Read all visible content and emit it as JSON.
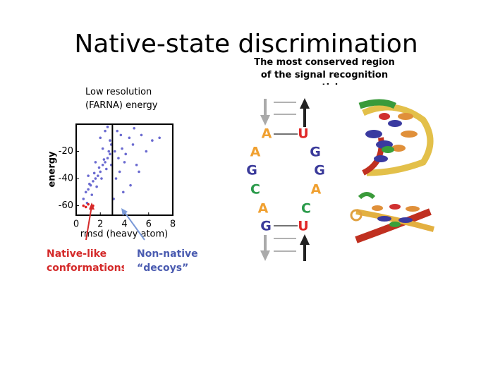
{
  "title": "Native-state discrimination",
  "subtitle": "The most conserved region of the signal recognition particle",
  "chart_data": {
    "type": "scatter",
    "title": "Low resolution (FARNA) energy",
    "xlabel": "rmsd (heavy atom)",
    "ylabel": "energy",
    "xlim": [
      0,
      8
    ],
    "ylim": [
      -67,
      0
    ],
    "xticks": [
      0,
      2,
      4,
      6,
      8
    ],
    "yticks": [
      -20,
      -40,
      -60
    ],
    "threshold_x": 3,
    "series": [
      {
        "color": "#6a6ad0",
        "x": [
          0.6,
          0.8,
          1.0,
          1.2,
          1.4,
          1.6,
          1.8,
          2.0,
          2.2,
          2.4,
          2.6,
          2.8,
          0.9,
          1.3,
          1.7,
          2.1,
          2.5,
          2.9,
          1.1,
          1.5,
          1.9,
          2.3,
          2.7,
          1.0,
          1.6,
          2.2,
          2.8,
          2.0,
          2.4,
          2.6,
          2.9,
          3.2,
          3.5,
          3.8,
          4.1,
          4.4,
          4.7,
          5.0,
          5.4,
          5.8,
          6.3,
          6.9,
          3.3,
          3.6,
          4.0,
          4.5,
          5.2,
          3.4,
          3.9,
          4.8,
          3.1,
          3.7
        ],
        "values": [
          -55,
          -50,
          -48,
          -45,
          -42,
          -40,
          -38,
          -35,
          -30,
          -28,
          -25,
          -22,
          -58,
          -52,
          -46,
          -40,
          -33,
          -30,
          -44,
          -36,
          -32,
          -26,
          -20,
          -38,
          -28,
          -18,
          -12,
          -10,
          -5,
          -2,
          -15,
          -20,
          -25,
          -18,
          -22,
          -10,
          -15,
          -30,
          -8,
          -20,
          -12,
          -10,
          -40,
          -35,
          -28,
          -45,
          -35,
          -5,
          -50,
          -3,
          -55,
          -8
        ]
      },
      {
        "color": "#e02020",
        "x": [
          0.6,
          0.8,
          1.0,
          1.2,
          1.4
        ],
        "values": [
          -60,
          -61,
          -59,
          -62,
          -60
        ]
      }
    ],
    "annotations": [
      {
        "text": "Native-like conformations",
        "color": "#d42a2a"
      },
      {
        "text": "Non-native “decoys”",
        "color": "#4a5bb0"
      }
    ]
  },
  "rna": {
    "left": [
      "A",
      "A",
      "G",
      "C",
      "A",
      "G"
    ],
    "right": [
      "U",
      "G",
      "G",
      "A",
      "C",
      "U"
    ],
    "base_colors": {
      "A": "#f0a030",
      "G": "#3a3a9a",
      "C": "#2a9a4a",
      "U": "#e02828"
    }
  }
}
